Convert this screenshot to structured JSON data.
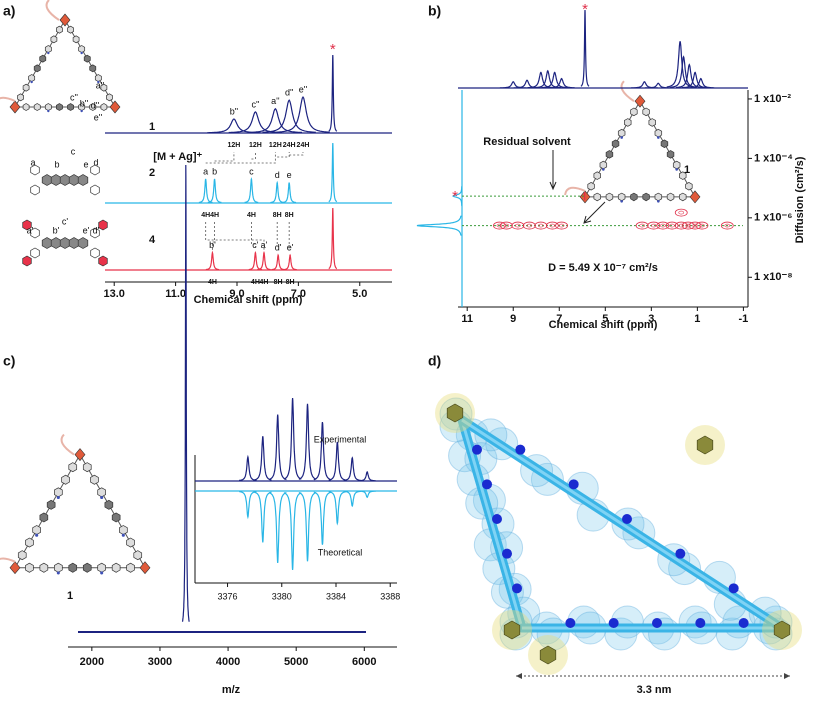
{
  "panel_labels": [
    "a)",
    "b)",
    "c)",
    "d)"
  ],
  "chart_data": [
    {
      "type": "nmr",
      "xlabel": "Chemical shift (ppm)",
      "xlim": [
        13.3,
        3.95
      ],
      "xticks": [
        {
          "value": 13,
          "label": "13.0"
        },
        {
          "value": 11,
          "label": "11.0"
        },
        {
          "value": 9,
          "label": "9.0"
        },
        {
          "value": 7,
          "label": "7.0"
        },
        {
          "value": 5,
          "label": "5.0"
        }
      ],
      "solvent_mark": "*",
      "structure_labels": [
        [
          "a''",
          "b''",
          "c''",
          "d''",
          "e''"
        ],
        [
          "a",
          "b",
          "c",
          "d",
          "e"
        ],
        [
          "a'",
          "b'",
          "c'",
          "d'",
          "e'"
        ]
      ],
      "series": [
        {
          "name": "1",
          "color": "#1c2380",
          "x": [
            9.1,
            8.4,
            7.75,
            7.3,
            6.85,
            5.88
          ],
          "values": [
            18,
            27,
            31,
            42,
            46,
            100
          ],
          "labels": [
            "b''",
            "c''",
            "a''",
            "d''",
            "e''",
            null
          ],
          "integrations": [
            "12H",
            "12H",
            "12H",
            "24H",
            "24H",
            null
          ]
        },
        {
          "name": "2",
          "color": "#29b6e6",
          "x": [
            10.02,
            9.73,
            8.53,
            7.69,
            7.3,
            5.88
          ],
          "values": [
            40,
            40,
            40,
            34,
            34,
            100
          ],
          "labels": [
            "a",
            "b",
            "c",
            "d",
            "e",
            null
          ],
          "integrations": [
            "4H",
            "4H",
            "4H",
            "8H",
            "8H",
            null
          ]
        },
        {
          "name": "4",
          "color": "#e8334a",
          "x": [
            9.8,
            8.4,
            8.12,
            7.66,
            7.27,
            5.88
          ],
          "values": [
            28,
            28,
            28,
            24,
            24,
            100
          ],
          "labels": [
            "b'",
            "c'",
            "a'",
            "d'",
            "e'",
            null
          ],
          "integrations": [
            "4H",
            "4H",
            "4H",
            "8H",
            "8H",
            null
          ]
        }
      ]
    },
    {
      "type": "dosy",
      "xlabel": "Chemical shift (ppm)",
      "ylabel": "Diffusion (cm²/s)",
      "log_y": true,
      "xlim": [
        11.4,
        -1.2
      ],
      "xticks": [
        11,
        9,
        7,
        5,
        3,
        1,
        -1
      ],
      "ylim": [
        1e-09,
        0.02
      ],
      "yticks": [
        {
          "value": 0.01,
          "label": "1 x10⁻²"
        },
        {
          "value": 0.0001,
          "label": "1 x10⁻⁴"
        },
        {
          "value": 1e-06,
          "label": "1 x10⁻⁶"
        },
        {
          "value": 1e-08,
          "label": "1 x10⁻⁸"
        }
      ],
      "solvent_mark": "*",
      "spectrum": {
        "color": "#1c2380",
        "x": [
          9.0,
          8.4,
          7.8,
          7.5,
          7.2,
          6.9,
          5.88,
          3.3,
          2.7,
          1.75,
          1.6,
          1.35,
          1.1,
          0.85
        ],
        "values": [
          8,
          10,
          20,
          22,
          20,
          12,
          100,
          8,
          6,
          60,
          40,
          30,
          20,
          12
        ]
      },
      "projection": {
        "color": "#29b6e6",
        "y": [
          5.4e-06,
          5.49e-07
        ],
        "values": [
          20,
          100
        ]
      },
      "spots": {
        "color": "#e0304a",
        "x": [
          9.6,
          9.3,
          8.8,
          8.3,
          7.8,
          7.3,
          6.9,
          3.4,
          2.9,
          2.5,
          2.1,
          1.7,
          1.4,
          1.1,
          0.8,
          -0.3,
          1.7
        ],
        "y": [
          5.49e-07,
          5.49e-07,
          5.49e-07,
          5.49e-07,
          5.49e-07,
          5.49e-07,
          5.49e-07,
          5.49e-07,
          5.49e-07,
          5.49e-07,
          5.49e-07,
          5.49e-07,
          5.49e-07,
          5.49e-07,
          5.49e-07,
          5.49e-07,
          1.5e-06
        ]
      },
      "residual": {
        "x": 5.9,
        "y": 5.4e-06
      },
      "D": 5.49e-07,
      "residual_label": "Residual solvent",
      "compound_label": "1",
      "d_label": "D = 5.49 X 10⁻⁷ cm²/s"
    },
    {
      "type": "ms",
      "xlabel": "m/z",
      "xlim": [
        1650,
        6480
      ],
      "xticks": [
        2000,
        3000,
        4000,
        5000,
        6000
      ],
      "color": "#1c2380",
      "x": [
        3380
      ],
      "values": [
        100
      ],
      "peak_label": "[M + Ag]⁺",
      "compound_label": "1",
      "inset": {
        "xlim": [
          3373.6,
          3388.5
        ],
        "xticks": [
          3376,
          3380,
          3384,
          3388
        ],
        "series": [
          {
            "name": "Experimental",
            "color": "#1c2380",
            "x": [
              3377.5,
              3378.6,
              3379.7,
              3380.8,
              3381.9,
              3383.0,
              3384.1,
              3385.2,
              3386.3
            ],
            "values": [
              29,
              54,
              80,
              100,
              93,
              71,
              47,
              28,
              11
            ]
          },
          {
            "name": "Theoretical",
            "color": "#29b6e6",
            "x": [
              3377.5,
              3378.6,
              3379.7,
              3380.8,
              3381.9,
              3383.0,
              3384.1,
              3385.2,
              3386.3
            ],
            "values": [
              33,
              65,
              91,
              100,
              89,
              68,
              41,
              19,
              8
            ]
          }
        ]
      }
    }
  ],
  "panel_d": {
    "scale_label": "3.3 nm"
  }
}
